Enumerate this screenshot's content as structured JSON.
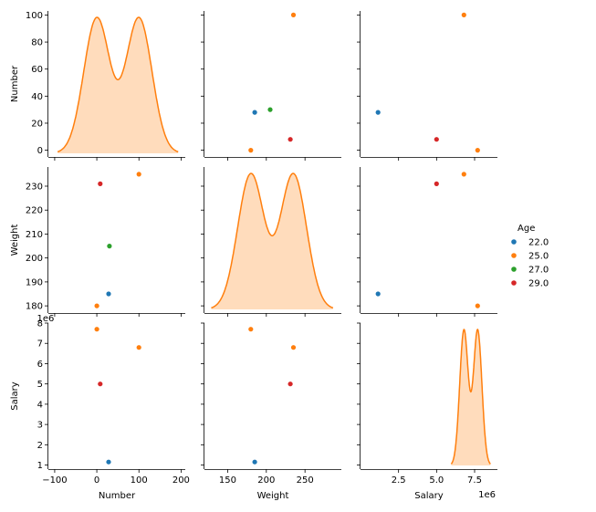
{
  "chart_data": {
    "type": "scatter",
    "kind": "pairplot",
    "variables": [
      "Number",
      "Weight",
      "Salary"
    ],
    "hue": "Age",
    "diagonal": "kde",
    "colors": {
      "22.0": "#1f77b4",
      "25.0": "#ff7f0e",
      "27.0": "#2ca02c",
      "29.0": "#d62728"
    },
    "legend": {
      "title": "Age",
      "entries": [
        "22.0",
        "25.0",
        "27.0",
        "29.0"
      ],
      "position": "right"
    },
    "points": [
      {
        "Number": 28,
        "Weight": 185,
        "Salary": 1150000,
        "Age": "22.0"
      },
      {
        "Number": 100,
        "Weight": 235,
        "Salary": 6800000,
        "Age": "25.0"
      },
      {
        "Number": 0,
        "Weight": 180,
        "Salary": 7700000,
        "Age": "25.0"
      },
      {
        "Number": 30,
        "Weight": 205,
        "Salary": null,
        "Age": "27.0"
      },
      {
        "Number": 8,
        "Weight": 231,
        "Salary": 5000000,
        "Age": "29.0"
      }
    ],
    "axes": {
      "Number": {
        "label": "Number",
        "x_range": [
          -115,
          210
        ],
        "x_ticks": [
          -100,
          0,
          100,
          200
        ],
        "x_tick_labels": [
          "−100",
          "0",
          "100",
          "200"
        ],
        "y_range": [
          -5,
          103
        ],
        "y_ticks": [
          0,
          20,
          40,
          60,
          80,
          100
        ],
        "y_tick_labels": [
          "0",
          "20",
          "40",
          "60",
          "80",
          "100"
        ]
      },
      "Weight": {
        "label": "Weight",
        "x_range": [
          120,
          297
        ],
        "x_ticks": [
          150,
          200,
          250
        ],
        "x_tick_labels": [
          "150",
          "200",
          "250"
        ],
        "y_range": [
          177,
          238
        ],
        "y_ticks": [
          180,
          190,
          200,
          210,
          220,
          230
        ],
        "y_tick_labels": [
          "180",
          "190",
          "200",
          "210",
          "220",
          "230"
        ]
      },
      "Salary": {
        "label": "Salary",
        "x_range": [
          0,
          9000000
        ],
        "x_ticks": [
          2500000,
          5000000,
          7500000
        ],
        "x_tick_labels": [
          "2.5",
          "5.0",
          "7.5"
        ],
        "x_offset_label": "1e6",
        "y_range": [
          800000,
          8000000
        ],
        "y_ticks": [
          1000000,
          2000000,
          3000000,
          4000000,
          5000000,
          6000000,
          7000000,
          8000000
        ],
        "y_tick_labels": [
          "1",
          "2",
          "3",
          "4",
          "5",
          "6",
          "7",
          "8"
        ],
        "y_offset_label": "1e6"
      }
    },
    "kde_color": "#ff7f0e",
    "kde_fill": "#ffdcbc"
  }
}
